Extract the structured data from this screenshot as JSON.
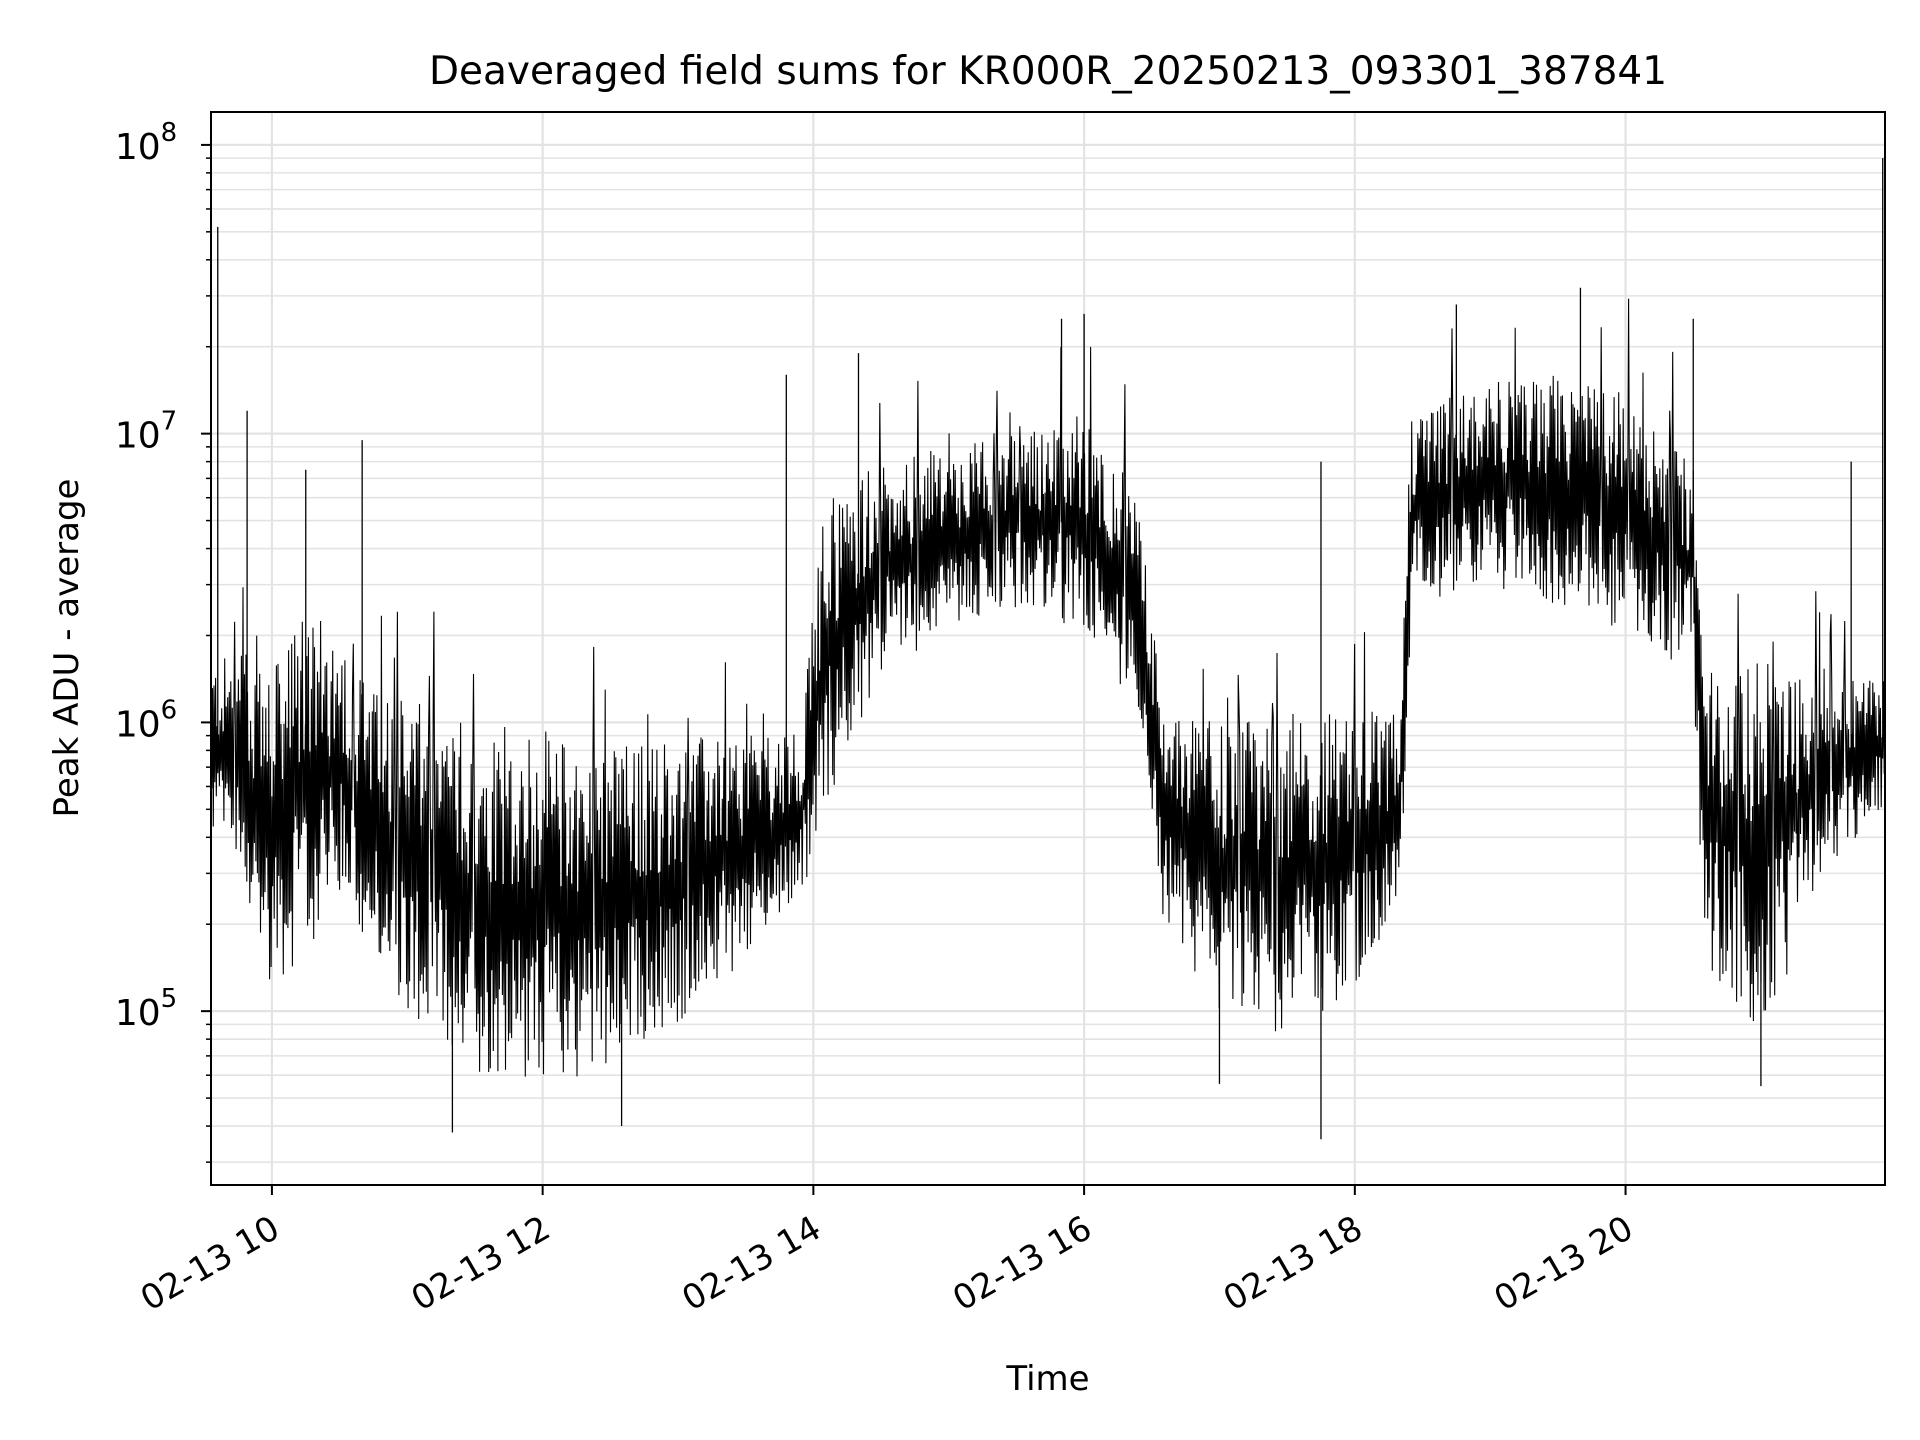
{
  "chart_data": {
    "type": "line",
    "title": "Deaveraged field sums for KR000R_20250213_093301_387841",
    "xlabel": "Time",
    "ylabel": "Peak ADU - average",
    "yscale": "log",
    "ylim": [
      25000,
      130000000
    ],
    "xlim": [
      "2025-02-13 09:33",
      "2025-02-13 21:55"
    ],
    "x_ticks": [
      "02-13 10",
      "02-13 12",
      "02-13 14",
      "02-13 16",
      "02-13 18",
      "02-13 20"
    ],
    "x_tick_times": [
      "2025-02-13 10:00",
      "2025-02-13 12:00",
      "2025-02-13 14:00",
      "2025-02-13 16:00",
      "2025-02-13 18:00",
      "2025-02-13 20:00"
    ],
    "y_ticks": [
      {
        "base": "10",
        "exp": "5",
        "value": 100000
      },
      {
        "base": "10",
        "exp": "6",
        "value": 1000000
      },
      {
        "base": "10",
        "exp": "7",
        "value": 10000000
      },
      {
        "base": "10",
        "exp": "8",
        "value": 100000000
      }
    ],
    "grid": true,
    "line_color": "#000000",
    "series": [
      {
        "x": [
          "2025-02-13 09:33",
          "2025-02-13 09:45",
          "2025-02-13 10:00",
          "2025-02-13 10:15",
          "2025-02-13 10:30",
          "2025-02-13 10:45",
          "2025-02-13 11:00",
          "2025-02-13 11:30",
          "2025-02-13 12:00",
          "2025-02-13 12:30",
          "2025-02-13 13:00",
          "2025-02-13 13:30",
          "2025-02-13 13:55",
          "2025-02-13 14:05",
          "2025-02-13 14:30",
          "2025-02-13 15:00",
          "2025-02-13 15:30",
          "2025-02-13 16:00",
          "2025-02-13 16:25",
          "2025-02-13 16:35",
          "2025-02-13 17:00",
          "2025-02-13 17:30",
          "2025-02-13 18:00",
          "2025-02-13 18:20",
          "2025-02-13 18:25",
          "2025-02-13 19:00",
          "2025-02-13 19:30",
          "2025-02-13 20:00",
          "2025-02-13 20:30",
          "2025-02-13 20:35",
          "2025-02-13 21:00",
          "2025-02-13 21:30",
          "2025-02-13 21:55"
        ],
        "low": [
          400000,
          300000,
          120000,
          150000,
          250000,
          150000,
          100000,
          60000,
          55000,
          60000,
          90000,
          150000,
          250000,
          500000,
          1500000,
          2000000,
          2500000,
          2000000,
          1000000,
          200000,
          100000,
          80000,
          120000,
          200000,
          2500000,
          3000000,
          2500000,
          2000000,
          1500000,
          150000,
          80000,
          300000,
          500000
        ],
        "high": [
          1600000,
          1800000,
          1500000,
          2500000,
          2000000,
          1300000,
          1200000,
          1000000,
          900000,
          850000,
          900000,
          900000,
          1000000,
          6000000,
          8000000,
          9000000,
          10000000,
          12000000,
          6000000,
          1100000,
          1000000,
          1100000,
          1100000,
          1100000,
          12000000,
          15000000,
          16000000,
          14000000,
          8000000,
          1600000,
          1600000,
          1600000,
          1400000
        ],
        "spikes": [
          {
            "x": "2025-02-13 09:36",
            "y": 52000000
          },
          {
            "x": "2025-02-13 09:49",
            "y": 12000000
          },
          {
            "x": "2025-02-13 10:15",
            "y": 7500000
          },
          {
            "x": "2025-02-13 10:40",
            "y": 9500000
          },
          {
            "x": "2025-02-13 11:20",
            "y": 38000
          },
          {
            "x": "2025-02-13 12:35",
            "y": 40000
          },
          {
            "x": "2025-02-13 13:48",
            "y": 16000000
          },
          {
            "x": "2025-02-13 14:20",
            "y": 19000000
          },
          {
            "x": "2025-02-13 15:50",
            "y": 25000000
          },
          {
            "x": "2025-02-13 16:00",
            "y": 26000000
          },
          {
            "x": "2025-02-13 17:00",
            "y": 56000
          },
          {
            "x": "2025-02-13 17:45",
            "y": 36000
          },
          {
            "x": "2025-02-13 17:45",
            "y": 8000000
          },
          {
            "x": "2025-02-13 18:45",
            "y": 28000000
          },
          {
            "x": "2025-02-13 19:40",
            "y": 32000000
          },
          {
            "x": "2025-02-13 20:30",
            "y": 25000000
          },
          {
            "x": "2025-02-13 21:00",
            "y": 55000
          },
          {
            "x": "2025-02-13 21:40",
            "y": 8000000
          },
          {
            "x": "2025-02-13 21:54",
            "y": 90000000
          }
        ]
      }
    ]
  }
}
